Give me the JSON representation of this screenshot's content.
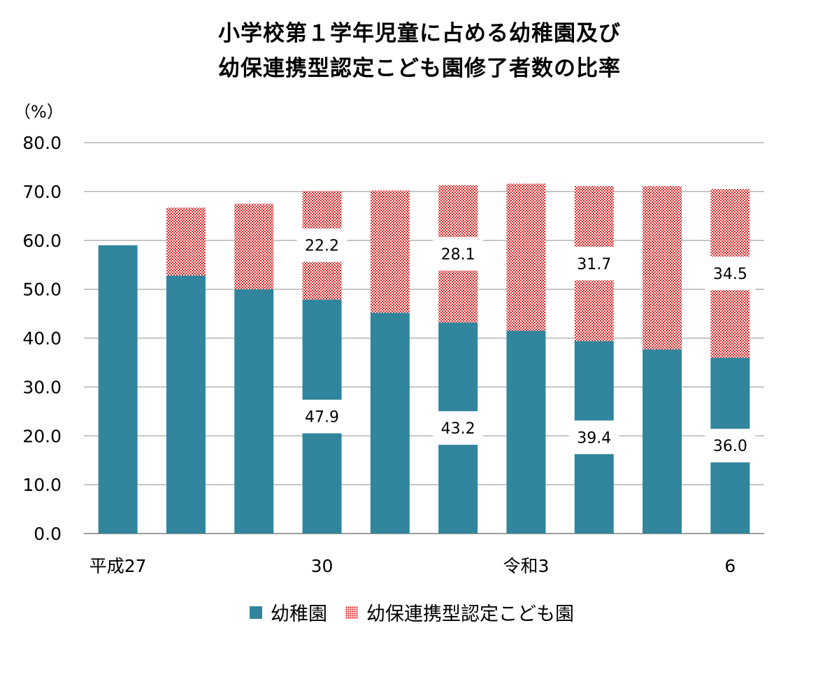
{
  "chart_data": {
    "type": "bar",
    "stacked": true,
    "title": "小学校第１学年児童に占める幼稚園及び\n幼保連携型認定こども園修了者数の比率",
    "title_lines": [
      "小学校第１学年児童に占める幼稚園及び",
      "幼保連携型認定こども園修了者数の比率"
    ],
    "unit_label": "（%）",
    "ylim": [
      0,
      80
    ],
    "yticks": [
      "0.0",
      "10.0",
      "20.0",
      "30.0",
      "40.0",
      "50.0",
      "60.0",
      "70.0",
      "80.0"
    ],
    "grid": true,
    "legend_position": "bottom",
    "categories": [
      "平成27",
      "",
      "",
      "30",
      "",
      "",
      "令和3",
      "",
      "",
      "6"
    ],
    "series": [
      {
        "name": "幼稚園",
        "color": "#31859c",
        "pattern": "solid",
        "values": [
          59.0,
          52.8,
          50.0,
          47.9,
          45.2,
          43.2,
          41.5,
          39.4,
          37.7,
          36.0
        ],
        "labels": [
          "",
          "",
          "",
          "47.9",
          "",
          "43.2",
          "",
          "39.4",
          "",
          "36.0"
        ]
      },
      {
        "name": "幼保連携型認定こども園",
        "color": "#e02020",
        "pattern": "dots",
        "values": [
          0.0,
          13.9,
          17.5,
          22.2,
          25.0,
          28.1,
          30.1,
          31.7,
          33.4,
          34.5
        ],
        "labels": [
          "",
          "",
          "",
          "22.2",
          "",
          "28.1",
          "",
          "31.7",
          "",
          "34.5"
        ]
      }
    ]
  }
}
